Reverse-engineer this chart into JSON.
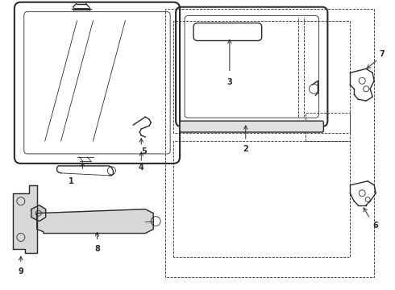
{
  "bg_color": "#ffffff",
  "line_color": "#2a2a2a",
  "label_color": "#000000",
  "fig_width": 4.9,
  "fig_height": 3.6,
  "dpi": 100,
  "xlim": [
    0,
    49
  ],
  "ylim": [
    0,
    36
  ]
}
